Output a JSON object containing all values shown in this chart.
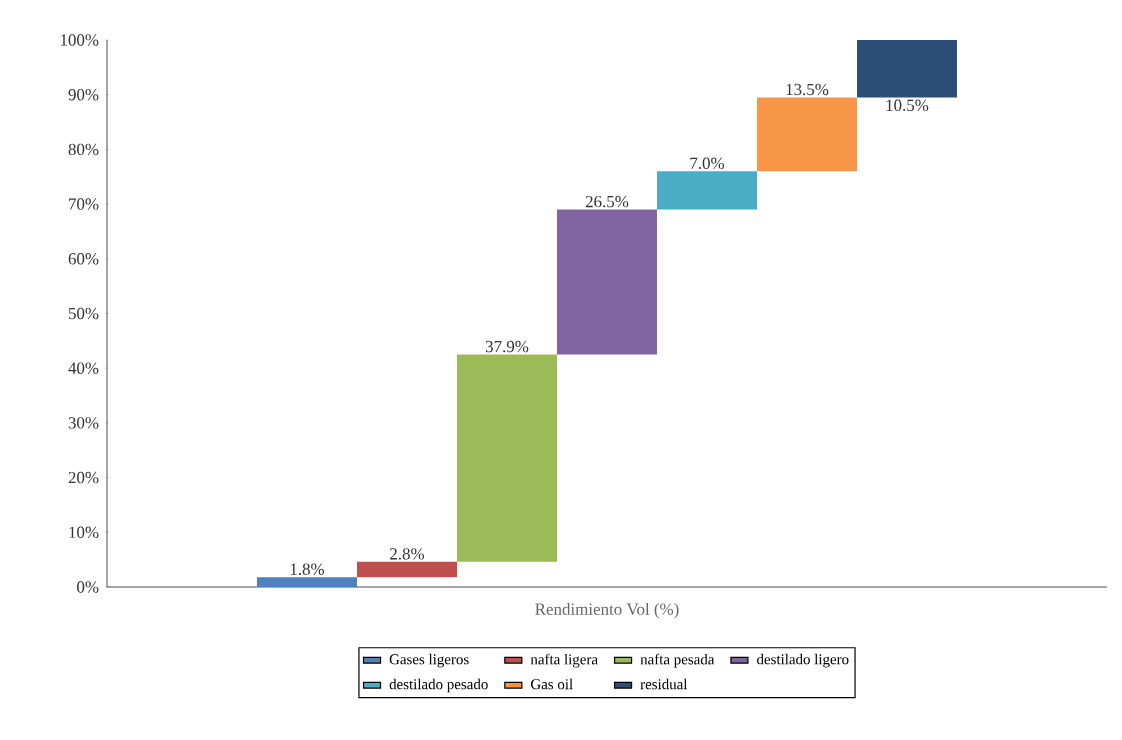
{
  "chart_data": {
    "type": "bar",
    "categories": [
      "Rendimiento Vol (%)"
    ],
    "series": [
      {
        "name": "Gases ligeros",
        "color": "#4f81bd",
        "values": [
          1.8
        ],
        "base": [
          0
        ],
        "value_labels": [
          "1.8%"
        ]
      },
      {
        "name": "nafta ligera",
        "color": "#c0504d",
        "values": [
          2.8
        ],
        "base": [
          1.8
        ],
        "value_labels": [
          "2.8%"
        ]
      },
      {
        "name": "nafta pesada",
        "color": "#9bbb59",
        "values": [
          37.9
        ],
        "base": [
          4.6
        ],
        "value_labels": [
          "37.9%"
        ]
      },
      {
        "name": "destilado ligero",
        "color": "#8064a2",
        "values": [
          26.5
        ],
        "base": [
          42.5
        ],
        "value_labels": [
          "26.5%"
        ]
      },
      {
        "name": "destilado pesado",
        "color": "#4bacc6",
        "values": [
          7.0
        ],
        "base": [
          69.0
        ],
        "value_labels": [
          "7.0%"
        ]
      },
      {
        "name": "Gas oil",
        "color": "#f79646",
        "values": [
          13.5
        ],
        "base": [
          76.0
        ],
        "value_labels": [
          "13.5%"
        ]
      },
      {
        "name": "residual",
        "color": "#2c4d75",
        "values": [
          10.5
        ],
        "base": [
          89.5
        ],
        "value_labels": [
          "10.5%"
        ]
      }
    ],
    "ylim": [
      0,
      100
    ],
    "yticks": [
      {
        "value": 0,
        "label": "0%"
      },
      {
        "value": 10,
        "label": "10%"
      },
      {
        "value": 20,
        "label": "20%"
      },
      {
        "value": 30,
        "label": "30%"
      },
      {
        "value": 40,
        "label": "40%"
      },
      {
        "value": 50,
        "label": "50%"
      },
      {
        "value": 60,
        "label": "60%"
      },
      {
        "value": 70,
        "label": "70%"
      },
      {
        "value": 80,
        "label": "80%"
      },
      {
        "value": 90,
        "label": "90%"
      },
      {
        "value": 100,
        "label": "100%"
      }
    ],
    "legend": "bottom",
    "grid": false
  }
}
